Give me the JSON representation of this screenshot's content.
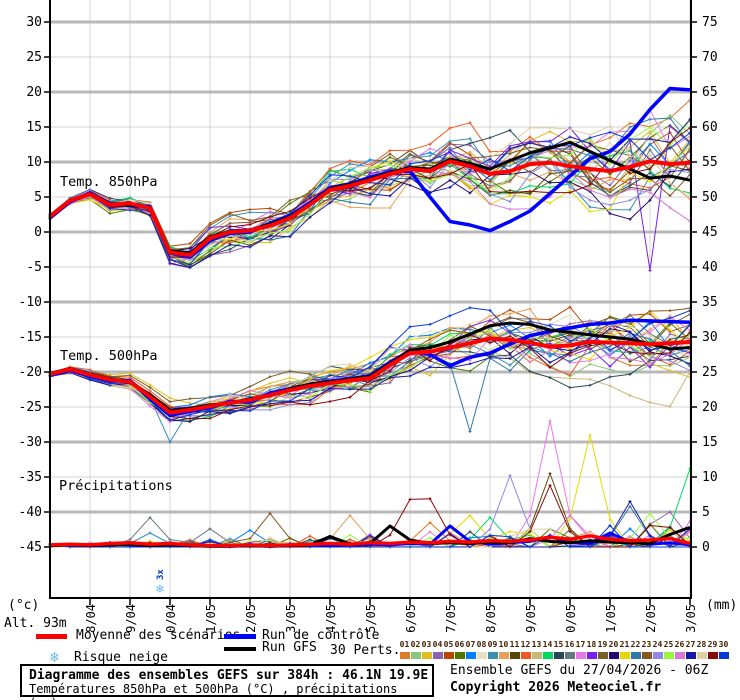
{
  "chart_data": {
    "type": "line",
    "title": "Diagramme des ensembles GEFS sur 384h : 46.1N 19.9E",
    "subtitle": "Températures 850hPa et 500hPa (°C) , précipitations (mm)",
    "run_info": "Ensemble GEFS du 27/04/2026 - 06Z",
    "copyright": "Copyright 2026 Meteociel.fr",
    "x_axis": {
      "hours_total": 384,
      "step_hours": 12,
      "day_labels": [
        "28/04",
        "29/04",
        "30/04",
        "01/05",
        "02/05",
        "03/05",
        "04/05",
        "05/05",
        "06/05",
        "07/05",
        "08/05",
        "09/05",
        "10/05",
        "11/05",
        "12/05",
        "13/05"
      ]
    },
    "left_axis": {
      "label": "(°c)",
      "alt_label": "Alt. 93m",
      "min": -45,
      "max": 30,
      "tick_step": 5
    },
    "right_axis": {
      "label": "(mm)",
      "min": 0,
      "max": 75,
      "tick_step": 5
    },
    "panels": [
      {
        "key": "t850",
        "label": "Temp. 850hPa"
      },
      {
        "key": "t500",
        "label": "Temp. 500hPa"
      },
      {
        "key": "precip",
        "label": "Précipitations"
      }
    ],
    "series": {
      "mean_850": [
        2.2,
        4.5,
        5.4,
        3.9,
        4.1,
        3.4,
        -2.9,
        -3.3,
        -0.9,
        0.0,
        0.2,
        0.9,
        2.0,
        3.9,
        6.0,
        6.6,
        7.4,
        8.3,
        9.0,
        8.7,
        10.1,
        9.4,
        8.3,
        8.7,
        9.7,
        9.9,
        9.4,
        9.0,
        8.7,
        9.3,
        10.1,
        9.7,
        9.9
      ],
      "control_850": [
        2.0,
        4.3,
        5.6,
        4.1,
        3.8,
        3.6,
        -3.0,
        -3.6,
        -1.2,
        -0.2,
        0.0,
        1.2,
        2.3,
        4.2,
        6.3,
        6.9,
        7.8,
        8.6,
        8.7,
        5.0,
        1.5,
        1.0,
        0.2,
        1.5,
        3.0,
        5.5,
        8.0,
        10.5,
        11.5,
        14.0,
        17.5,
        20.5,
        20.3
      ],
      "gfs_850": [
        2.1,
        4.4,
        5.5,
        4.0,
        3.9,
        3.5,
        -2.7,
        -3.0,
        -0.7,
        0.1,
        0.3,
        1.1,
        2.2,
        4.0,
        6.2,
        6.8,
        7.6,
        8.5,
        9.2,
        9.0,
        10.4,
        9.8,
        9.0,
        10.2,
        11.3,
        12.0,
        12.8,
        11.5,
        10.2,
        9.0,
        7.7,
        8.0,
        7.4
      ],
      "mean_500": [
        -20.3,
        -19.6,
        -20.4,
        -21.1,
        -21.4,
        -23.5,
        -25.8,
        -25.4,
        -24.9,
        -24.4,
        -24.0,
        -23.3,
        -22.6,
        -22.0,
        -21.6,
        -21.2,
        -20.9,
        -19.0,
        -17.3,
        -17.1,
        -16.5,
        -15.9,
        -15.2,
        -15.4,
        -15.8,
        -16.4,
        -16.2,
        -15.7,
        -15.8,
        -15.9,
        -16.0,
        -15.9,
        -15.7
      ],
      "control_500": [
        -20.5,
        -19.8,
        -20.6,
        -21.3,
        -21.2,
        -23.8,
        -26.2,
        -25.6,
        -25.1,
        -24.2,
        -24.3,
        -23.0,
        -22.4,
        -21.8,
        -21.3,
        -21.0,
        -20.5,
        -18.6,
        -17.0,
        -17.5,
        -19.1,
        -17.9,
        -17.3,
        -16.0,
        -14.8,
        -14.2,
        -13.7,
        -13.2,
        -13.0,
        -12.6,
        -12.7,
        -12.8,
        -12.9
      ],
      "gfs_500": [
        -20.2,
        -19.5,
        -20.3,
        -21.0,
        -21.5,
        -23.2,
        -25.5,
        -25.2,
        -24.7,
        -24.5,
        -23.8,
        -23.4,
        -22.4,
        -21.7,
        -21.4,
        -21.0,
        -20.6,
        -18.8,
        -16.9,
        -16.5,
        -15.7,
        -14.6,
        -13.4,
        -13.0,
        -13.2,
        -14.0,
        -14.3,
        -14.7,
        -15.0,
        -15.3,
        -16.0,
        -16.7,
        -16.5
      ],
      "mean_precip": [
        0.3,
        0.4,
        0.3,
        0.5,
        0.6,
        0.4,
        0.5,
        0.3,
        0.2,
        0.2,
        0.3,
        0.2,
        0.3,
        0.4,
        0.5,
        0.4,
        0.6,
        0.5,
        0.7,
        0.6,
        0.8,
        0.7,
        0.9,
        0.8,
        1.0,
        1.4,
        1.1,
        1.6,
        1.1,
        0.9,
        1.0,
        1.2,
        0.5
      ],
      "control_precip": [
        0.2,
        0.3,
        0.2,
        0.4,
        0.3,
        0.2,
        0.4,
        0.2,
        0.1,
        0.1,
        0.2,
        0.1,
        0.2,
        0.3,
        0.2,
        0.3,
        0.4,
        0.3,
        0.5,
        0.4,
        3.0,
        0.8,
        0.4,
        0.6,
        0.8,
        1.5,
        0.6,
        0.5,
        2.0,
        0.7,
        0.4,
        0.6,
        0.3
      ],
      "gfs_precip": [
        0.2,
        0.3,
        0.2,
        0.3,
        0.4,
        0.2,
        0.3,
        0.2,
        0.1,
        0.1,
        0.2,
        0.1,
        0.2,
        0.3,
        1.5,
        0.4,
        0.5,
        3.0,
        1.0,
        0.5,
        0.6,
        0.5,
        0.7,
        0.6,
        1.2,
        0.8,
        0.6,
        0.9,
        0.7,
        0.6,
        0.5,
        1.8,
        2.8
      ]
    },
    "members": {
      "count": 30,
      "labels": [
        "01",
        "02",
        "03",
        "04",
        "05",
        "06",
        "07",
        "08",
        "09",
        "10",
        "11",
        "12",
        "13",
        "14",
        "15",
        "16",
        "17",
        "18",
        "19",
        "20",
        "21",
        "22",
        "23",
        "24",
        "25",
        "26",
        "27",
        "28",
        "29",
        "30"
      ],
      "colors": [
        "#e07828",
        "#88c878",
        "#e0c020",
        "#9060b0",
        "#b84800",
        "#507800",
        "#0080ff",
        "#e8e0c0",
        "#3890b0",
        "#e8a058",
        "#584808",
        "#f05820",
        "#c8b878",
        "#00d860",
        "#284858",
        "#687880",
        "#e878e8",
        "#7820f0",
        "#786028",
        "#280868",
        "#e8d800",
        "#3078a8",
        "#885820",
        "#9088e8",
        "#98f840",
        "#d878d8",
        "#1818a8",
        "#e0d0a8",
        "#880808",
        "#0838d8"
      ]
    },
    "precip_spikes": [
      [
        16,
        54,
        4.2
      ],
      [
        9,
        60,
        2.0
      ],
      [
        16,
        96,
        2.6
      ],
      [
        7,
        120,
        2.4
      ],
      [
        23,
        132,
        4.8
      ],
      [
        10,
        174,
        4.5
      ],
      [
        29,
        210,
        6.8
      ],
      [
        1,
        222,
        3.5
      ],
      [
        29,
        228,
        6.9
      ],
      [
        21,
        252,
        4.5
      ],
      [
        14,
        258,
        4.2
      ],
      [
        24,
        276,
        10.2
      ],
      [
        29,
        294,
        8.8
      ],
      [
        11,
        300,
        10.5
      ],
      [
        17,
        304,
        18.0
      ],
      [
        26,
        310,
        4.5
      ],
      [
        21,
        324,
        16.0
      ],
      [
        22,
        348,
        5.8
      ],
      [
        27,
        352,
        6.5
      ],
      [
        25,
        356,
        4.8
      ],
      [
        4,
        368,
        5.0
      ],
      [
        14,
        378,
        11.2
      ]
    ],
    "forced_850": [
      [
        18,
        360,
        -5.5
      ]
    ],
    "forced_500": [
      [
        9,
        72,
        -30.0
      ],
      [
        22,
        246,
        -28.5
      ]
    ],
    "snow_markers": [
      {
        "hour": 66,
        "label": "3x"
      }
    ]
  },
  "legend": {
    "mean": "Moyenne des scénarios",
    "control": "Run de contrôle",
    "gfs": "Run GFS",
    "perts": "30 Perts.",
    "snow": "Risque neige",
    "snow_icon": "❄"
  },
  "colors": {
    "mean": "#ff0000",
    "control": "#0000ff",
    "gfs": "#000000",
    "grid_minor": "#d6d6d6",
    "grid_major": "#b8b8b8",
    "axis": "#000000",
    "snowflake": "#6fb9e8",
    "snow_label": "#0040d0",
    "pert_number": "#442200"
  }
}
